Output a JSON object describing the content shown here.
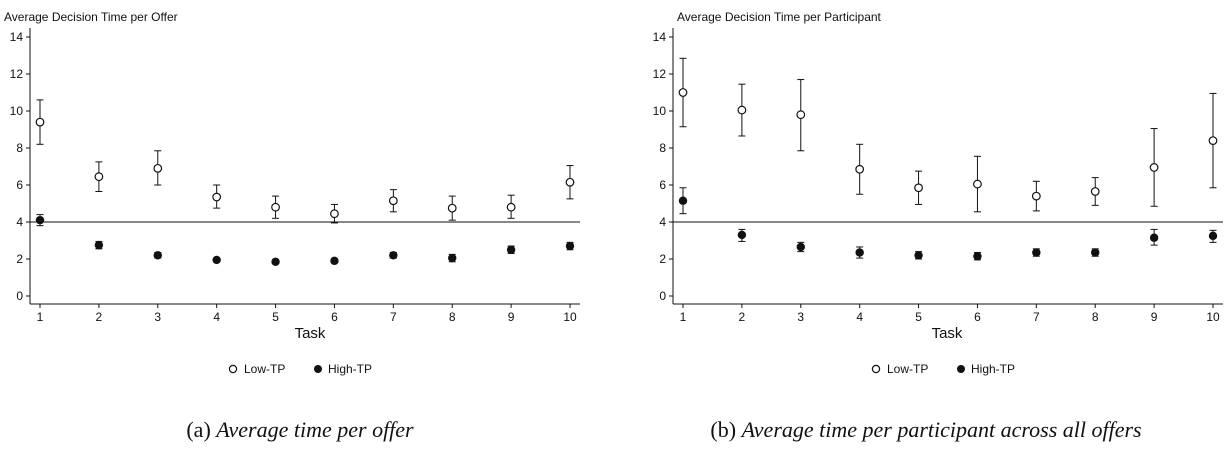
{
  "chart_data": [
    {
      "type": "scatter",
      "title": "Average Decision Time per Offer",
      "xlabel": "Task",
      "ylabel": "",
      "xlim": [
        1,
        10
      ],
      "ylim": [
        0,
        14
      ],
      "x": [
        1,
        2,
        3,
        4,
        5,
        6,
        7,
        8,
        9,
        10
      ],
      "yticks": [
        0,
        2,
        4,
        6,
        8,
        10,
        12,
        14
      ],
      "xticks": [
        1,
        2,
        3,
        4,
        5,
        6,
        7,
        8,
        9,
        10
      ],
      "reference_line": 4,
      "legend_position": "bottom-center",
      "series": [
        {
          "name": "Low-TP",
          "marker": "hollow-circle",
          "values": [
            9.4,
            6.45,
            6.9,
            5.35,
            4.8,
            4.45,
            5.15,
            4.75,
            4.8,
            6.15
          ],
          "lower": [
            8.2,
            5.65,
            6.0,
            4.75,
            4.2,
            3.95,
            4.55,
            4.1,
            4.2,
            5.25
          ],
          "upper": [
            10.6,
            7.25,
            7.85,
            6.0,
            5.4,
            4.95,
            5.75,
            5.4,
            5.45,
            7.05
          ]
        },
        {
          "name": "High-TP",
          "marker": "filled-circle",
          "values": [
            4.1,
            2.75,
            2.2,
            1.95,
            1.85,
            1.9,
            2.2,
            2.05,
            2.5,
            2.7
          ],
          "lower": [
            3.8,
            2.55,
            2.05,
            1.85,
            1.75,
            1.8,
            2.05,
            1.85,
            2.3,
            2.5
          ],
          "upper": [
            4.4,
            2.95,
            2.35,
            2.05,
            1.95,
            2.0,
            2.35,
            2.25,
            2.7,
            2.9
          ]
        }
      ]
    },
    {
      "type": "scatter",
      "title": "Average Decision Time per Participant",
      "xlabel": "Task",
      "ylabel": "",
      "xlim": [
        1,
        10
      ],
      "ylim": [
        0,
        14
      ],
      "x": [
        1,
        2,
        3,
        4,
        5,
        6,
        7,
        8,
        9,
        10
      ],
      "yticks": [
        0,
        2,
        4,
        6,
        8,
        10,
        12,
        14
      ],
      "xticks": [
        1,
        2,
        3,
        4,
        5,
        6,
        7,
        8,
        9,
        10
      ],
      "reference_line": 4,
      "legend_position": "bottom-center",
      "series": [
        {
          "name": "Low-TP",
          "marker": "hollow-circle",
          "values": [
            11.0,
            10.05,
            9.8,
            6.85,
            5.85,
            6.05,
            5.4,
            5.65,
            6.95,
            8.4
          ],
          "lower": [
            9.15,
            8.65,
            7.85,
            5.5,
            4.95,
            4.55,
            4.6,
            4.9,
            4.85,
            5.85
          ],
          "upper": [
            12.85,
            11.45,
            11.7,
            8.2,
            6.75,
            7.55,
            6.2,
            6.4,
            9.05,
            10.95
          ]
        },
        {
          "name": "High-TP",
          "marker": "filled-circle",
          "values": [
            5.15,
            3.3,
            2.65,
            2.35,
            2.2,
            2.15,
            2.35,
            2.35,
            3.15,
            3.25
          ],
          "lower": [
            4.45,
            2.95,
            2.4,
            2.05,
            2.0,
            1.95,
            2.15,
            2.15,
            2.75,
            2.9
          ],
          "upper": [
            5.85,
            3.6,
            2.9,
            2.65,
            2.4,
            2.35,
            2.55,
            2.55,
            3.6,
            3.55
          ]
        }
      ]
    }
  ],
  "captions": [
    {
      "label": "(a)",
      "text": "Average time per offer"
    },
    {
      "label": "(b)",
      "text": "Average time per participant across all offers"
    }
  ]
}
